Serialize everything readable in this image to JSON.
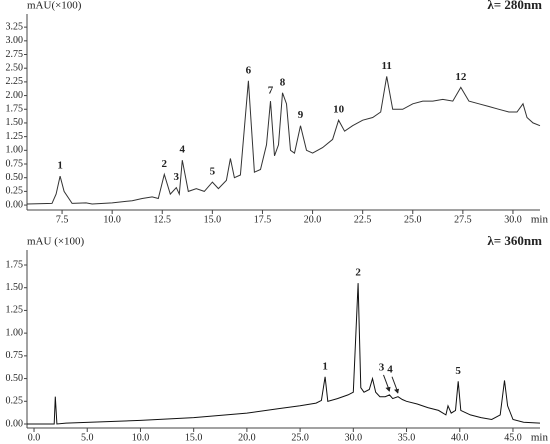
{
  "chart_data": [
    {
      "type": "line",
      "title": "λ= 280nm",
      "y_label": "mAU(×100)",
      "x_label": "min",
      "color": "#333333",
      "xlim": [
        5.75,
        31.35
      ],
      "ylim": [
        -0.09,
        3.49
      ],
      "xticks": [
        {
          "value": 7.5,
          "label": "7.5"
        },
        {
          "value": 10,
          "label": "10.0"
        },
        {
          "value": 12.5,
          "label": "12.5"
        },
        {
          "value": 15,
          "label": "15.0"
        },
        {
          "value": 17.5,
          "label": "17.5"
        },
        {
          "value": 20,
          "label": "20.0"
        },
        {
          "value": 22.5,
          "label": "22.5"
        },
        {
          "value": 25,
          "label": "25.0"
        },
        {
          "value": 27.5,
          "label": "27.5"
        },
        {
          "value": 30,
          "label": "30.0"
        }
      ],
      "yticks": [
        {
          "value": 0,
          "label": "0.00"
        },
        {
          "value": 0.25,
          "label": "0.25"
        },
        {
          "value": 0.5,
          "label": "0.50"
        },
        {
          "value": 0.75,
          "label": "0.75"
        },
        {
          "value": 1,
          "label": "1.00"
        },
        {
          "value": 1.25,
          "label": "1.25"
        },
        {
          "value": 1.5,
          "label": "1.50"
        },
        {
          "value": 1.75,
          "label": "1.75"
        },
        {
          "value": 2,
          "label": "2.00"
        },
        {
          "value": 2.25,
          "label": "2.25"
        },
        {
          "value": 2.5,
          "label": "2.50"
        },
        {
          "value": 2.75,
          "label": "2.75"
        },
        {
          "value": 3,
          "label": "3.00"
        },
        {
          "value": 3.25,
          "label": "3.25"
        }
      ],
      "x": [
        5.75,
        7.0,
        7.2,
        7.4,
        7.6,
        8.0,
        8.7,
        9.0,
        10.0,
        11.0,
        11.5,
        12.0,
        12.3,
        12.6,
        12.9,
        13.2,
        13.35,
        13.5,
        13.8,
        14.2,
        14.6,
        15.0,
        15.3,
        15.7,
        15.9,
        16.1,
        16.4,
        16.8,
        17.1,
        17.4,
        17.7,
        17.9,
        18.1,
        18.3,
        18.5,
        18.7,
        18.9,
        19.1,
        19.4,
        19.7,
        20.0,
        20.5,
        21.0,
        21.3,
        21.6,
        22.0,
        22.5,
        23.0,
        23.4,
        23.7,
        24.0,
        24.5,
        25.0,
        25.5,
        26.0,
        26.5,
        27.0,
        27.4,
        27.8,
        28.3,
        28.8,
        29.3,
        29.8,
        30.2,
        30.5,
        30.7,
        31.0,
        31.35
      ],
      "values": [
        0.02,
        0.03,
        0.2,
        0.53,
        0.25,
        0.03,
        0.04,
        0.02,
        0.04,
        0.08,
        0.12,
        0.15,
        0.12,
        0.56,
        0.2,
        0.32,
        0.2,
        0.82,
        0.25,
        0.3,
        0.25,
        0.42,
        0.3,
        0.45,
        0.85,
        0.5,
        0.55,
        2.27,
        0.6,
        0.65,
        1.1,
        1.9,
        0.9,
        1.1,
        2.05,
        1.85,
        1.0,
        0.95,
        1.45,
        1.0,
        0.95,
        1.05,
        1.2,
        1.55,
        1.35,
        1.45,
        1.55,
        1.6,
        1.7,
        2.35,
        1.75,
        1.75,
        1.85,
        1.9,
        1.9,
        1.93,
        1.9,
        2.15,
        1.9,
        1.85,
        1.8,
        1.75,
        1.7,
        1.7,
        1.85,
        1.6,
        1.5,
        1.45
      ],
      "peaks": [
        {
          "label": "1",
          "x": 7.4,
          "y": 0.53
        },
        {
          "label": "2",
          "x": 12.6,
          "y": 0.56
        },
        {
          "label": "3",
          "x": 13.2,
          "y": 0.32
        },
        {
          "label": "4",
          "x": 13.5,
          "y": 0.82
        },
        {
          "label": "5",
          "x": 15.0,
          "y": 0.42
        },
        {
          "label": "6",
          "x": 16.8,
          "y": 2.27
        },
        {
          "label": "7",
          "x": 17.9,
          "y": 1.9
        },
        {
          "label": "8",
          "x": 18.5,
          "y": 2.05
        },
        {
          "label": "9",
          "x": 19.4,
          "y": 1.45
        },
        {
          "label": "10",
          "x": 21.3,
          "y": 1.55
        },
        {
          "label": "11",
          "x": 23.7,
          "y": 2.35
        },
        {
          "label": "12",
          "x": 27.4,
          "y": 2.15
        }
      ]
    },
    {
      "type": "line",
      "title": "λ= 360nm",
      "y_label": "mAU (×100)",
      "x_label": "min",
      "color": "#111111",
      "xlim": [
        -0.66,
        47.54
      ],
      "ylim": [
        -0.044,
        1.915
      ],
      "xticks": [
        {
          "value": 0,
          "label": "0.0"
        },
        {
          "value": 5,
          "label": "5.0"
        },
        {
          "value": 10,
          "label": "10.0"
        },
        {
          "value": 15,
          "label": "15.0"
        },
        {
          "value": 20,
          "label": "20.0"
        },
        {
          "value": 25,
          "label": "25.0"
        },
        {
          "value": 30,
          "label": "30.0"
        },
        {
          "value": 35,
          "label": "35.0"
        },
        {
          "value": 40,
          "label": "40.0"
        },
        {
          "value": 45,
          "label": "45.0"
        }
      ],
      "yticks": [
        {
          "value": 0,
          "label": "0.00"
        },
        {
          "value": 0.25,
          "label": "0.25"
        },
        {
          "value": 0.5,
          "label": "0.50"
        },
        {
          "value": 0.75,
          "label": "0.75"
        },
        {
          "value": 1,
          "label": "1.00"
        },
        {
          "value": 1.25,
          "label": "1.25"
        },
        {
          "value": 1.5,
          "label": "1.50"
        },
        {
          "value": 1.75,
          "label": "1.75"
        }
      ],
      "x": [
        -0.66,
        1.9,
        2.0,
        2.15,
        3.0,
        10.0,
        15.0,
        20.0,
        23.0,
        25.0,
        26.5,
        27.0,
        27.35,
        27.6,
        28.5,
        29.5,
        30.0,
        30.45,
        30.7,
        31.0,
        31.5,
        31.8,
        32.1,
        32.5,
        33.0,
        33.4,
        33.7,
        34.2,
        34.6,
        35.0,
        36.0,
        37.0,
        38.0,
        38.7,
        38.9,
        39.2,
        39.6,
        39.85,
        40.1,
        41.0,
        42.0,
        43.0,
        43.8,
        44.2,
        44.5,
        45.0,
        46.0,
        47.54
      ],
      "values": [
        0.0,
        0.0,
        0.3,
        0.0,
        0.01,
        0.04,
        0.07,
        0.12,
        0.17,
        0.2,
        0.23,
        0.26,
        0.52,
        0.25,
        0.28,
        0.32,
        0.35,
        1.55,
        0.4,
        0.35,
        0.38,
        0.5,
        0.35,
        0.3,
        0.3,
        0.32,
        0.28,
        0.3,
        0.27,
        0.25,
        0.22,
        0.18,
        0.15,
        0.1,
        0.2,
        0.12,
        0.15,
        0.47,
        0.15,
        0.1,
        0.07,
        0.05,
        0.1,
        0.48,
        0.2,
        0.05,
        0.02,
        0.01
      ],
      "peaks": [
        {
          "label": "1",
          "x": 27.35,
          "y": 0.52
        },
        {
          "label": "2",
          "x": 30.45,
          "y": 1.55
        },
        {
          "label": "3",
          "x": 33.4,
          "y": 0.32,
          "arrow": true
        },
        {
          "label": "4",
          "x": 34.2,
          "y": 0.3,
          "arrow": true
        },
        {
          "label": "5",
          "x": 39.85,
          "y": 0.47
        }
      ]
    }
  ]
}
